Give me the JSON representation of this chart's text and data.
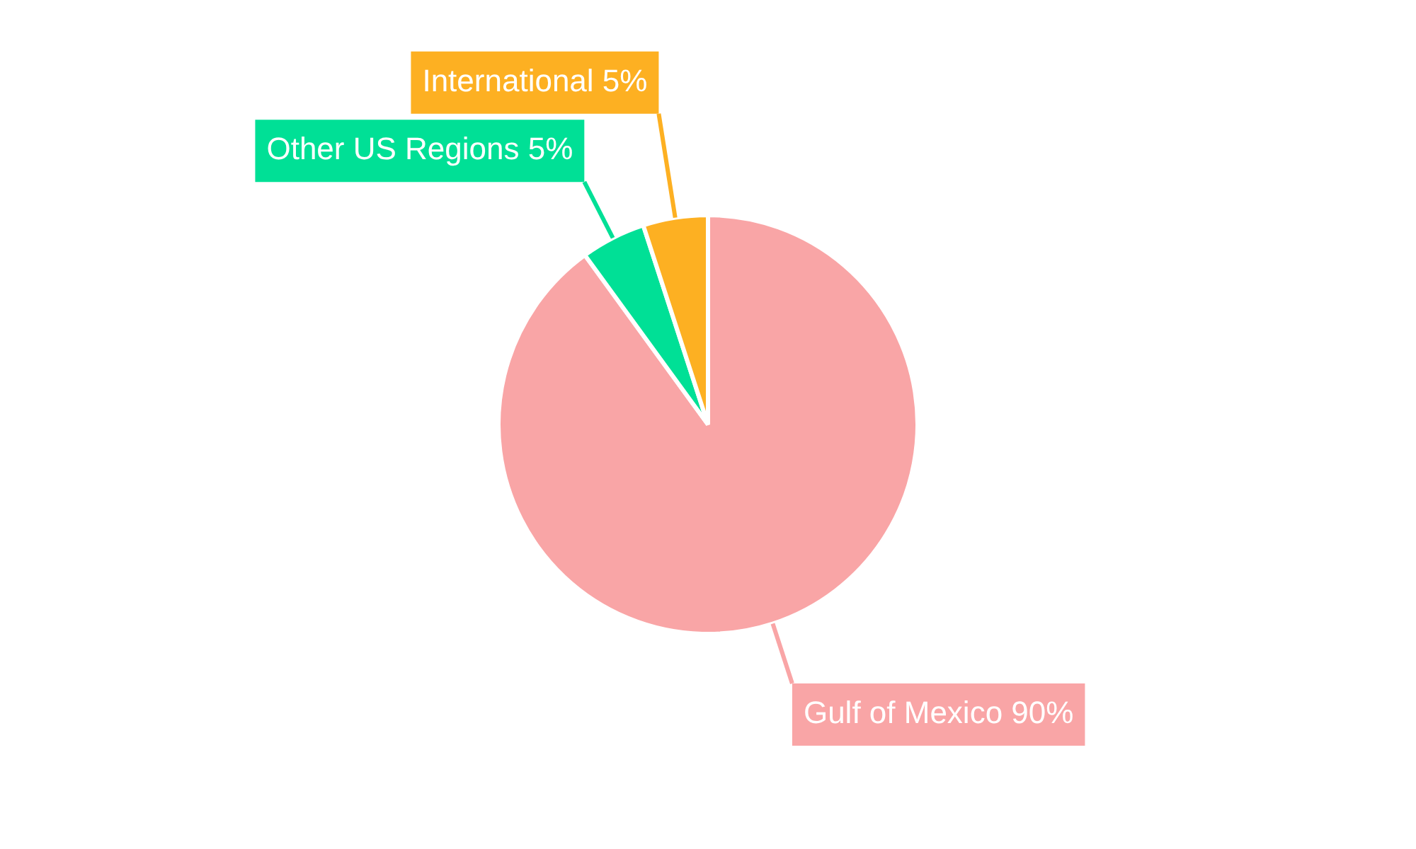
{
  "chart_data": {
    "type": "pie",
    "categories": [
      "Gulf of Mexico",
      "Other US Regions",
      "International"
    ],
    "values": [
      90,
      5,
      5
    ],
    "value_labels": [
      "90%",
      "5%",
      "5%"
    ],
    "colors": [
      "#f9a5a6",
      "#00e096",
      "#fdb022"
    ],
    "legend": false
  }
}
